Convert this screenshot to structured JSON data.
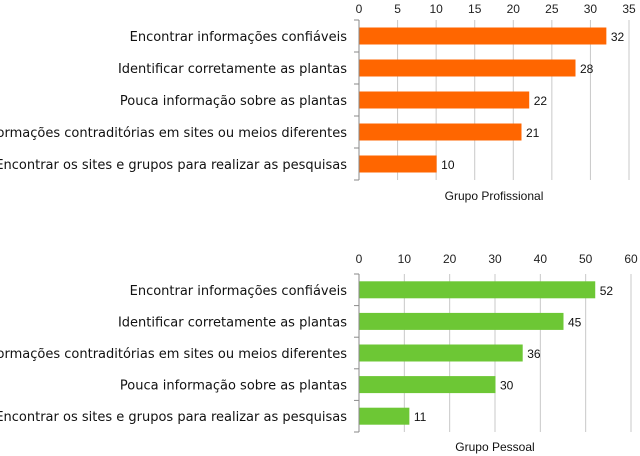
{
  "chart_data": [
    {
      "type": "bar",
      "orientation": "horizontal",
      "xlabel": "Grupo Profissional",
      "xlim": [
        0,
        35
      ],
      "ticks": [
        0,
        5,
        10,
        15,
        20,
        25,
        30,
        35
      ],
      "color": "#FF6600",
      "grid": true,
      "categories": [
        "Encontrar informações confiáveis",
        "Identificar corretamente as plantas",
        "Pouca informação sobre as plantas",
        "Informações contraditórias em sites ou meios diferentes",
        "Encontrar os sites e grupos para realizar as pesquisas"
      ],
      "values": [
        32,
        28,
        22,
        21,
        10
      ]
    },
    {
      "type": "bar",
      "orientation": "horizontal",
      "xlabel": "Grupo Pessoal",
      "xlim": [
        0,
        60
      ],
      "ticks": [
        0,
        10,
        20,
        30,
        40,
        50,
        60
      ],
      "color": "#6DC735",
      "grid": true,
      "categories": [
        "Encontrar informações confiáveis",
        "Identificar corretamente as plantas",
        "Informações contraditórias em sites ou meios diferentes",
        "Pouca informação sobre as plantas",
        "Encontrar os sites e grupos para realizar as pesquisas"
      ],
      "values": [
        52,
        45,
        36,
        30,
        11
      ]
    }
  ]
}
